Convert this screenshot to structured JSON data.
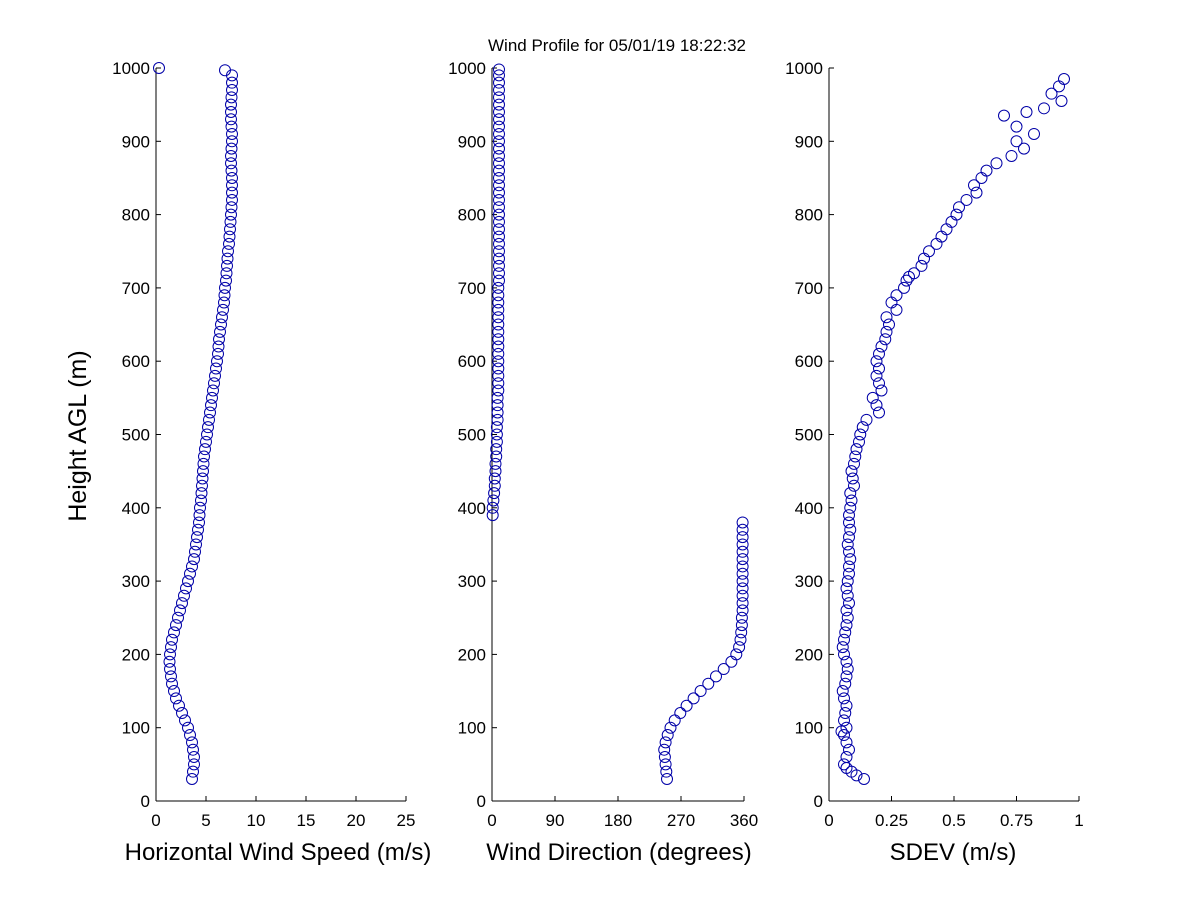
{
  "title": "Wind Profile for  05/01/19 18:22:32",
  "ylabel": "Height AGL (m)",
  "colors": {
    "marker": "#0000a8"
  },
  "chart_data": [
    {
      "type": "scatter",
      "name": "speed",
      "xlabel": "Horizontal Wind Speed (m/s)",
      "xlim": [
        0,
        25
      ],
      "ylim": [
        0,
        1000
      ],
      "xticks": [
        0,
        5,
        10,
        15,
        20,
        25
      ],
      "yticks": [
        0,
        100,
        200,
        300,
        400,
        500,
        600,
        700,
        800,
        900,
        1000
      ],
      "points": [
        {
          "x": 3.6,
          "y": 30
        },
        {
          "x": 3.7,
          "y": 40
        },
        {
          "x": 3.8,
          "y": 50
        },
        {
          "x": 3.8,
          "y": 60
        },
        {
          "x": 3.7,
          "y": 70
        },
        {
          "x": 3.6,
          "y": 80
        },
        {
          "x": 3.4,
          "y": 90
        },
        {
          "x": 3.2,
          "y": 100
        },
        {
          "x": 2.9,
          "y": 110
        },
        {
          "x": 2.6,
          "y": 120
        },
        {
          "x": 2.3,
          "y": 130
        },
        {
          "x": 2.0,
          "y": 140
        },
        {
          "x": 1.8,
          "y": 150
        },
        {
          "x": 1.6,
          "y": 160
        },
        {
          "x": 1.5,
          "y": 170
        },
        {
          "x": 1.4,
          "y": 180
        },
        {
          "x": 1.35,
          "y": 190
        },
        {
          "x": 1.4,
          "y": 200
        },
        {
          "x": 1.5,
          "y": 210
        },
        {
          "x": 1.6,
          "y": 220
        },
        {
          "x": 1.8,
          "y": 230
        },
        {
          "x": 2.0,
          "y": 240
        },
        {
          "x": 2.2,
          "y": 250
        },
        {
          "x": 2.4,
          "y": 260
        },
        {
          "x": 2.6,
          "y": 270
        },
        {
          "x": 2.8,
          "y": 280
        },
        {
          "x": 3.0,
          "y": 290
        },
        {
          "x": 3.2,
          "y": 300
        },
        {
          "x": 3.4,
          "y": 310
        },
        {
          "x": 3.6,
          "y": 320
        },
        {
          "x": 3.8,
          "y": 330
        },
        {
          "x": 3.9,
          "y": 340
        },
        {
          "x": 4.0,
          "y": 350
        },
        {
          "x": 4.1,
          "y": 360
        },
        {
          "x": 4.2,
          "y": 370
        },
        {
          "x": 4.3,
          "y": 380
        },
        {
          "x": 4.35,
          "y": 390
        },
        {
          "x": 4.4,
          "y": 400
        },
        {
          "x": 4.5,
          "y": 410
        },
        {
          "x": 4.55,
          "y": 420
        },
        {
          "x": 4.6,
          "y": 430
        },
        {
          "x": 4.65,
          "y": 440
        },
        {
          "x": 4.7,
          "y": 450
        },
        {
          "x": 4.75,
          "y": 460
        },
        {
          "x": 4.8,
          "y": 470
        },
        {
          "x": 4.9,
          "y": 480
        },
        {
          "x": 5.0,
          "y": 490
        },
        {
          "x": 5.1,
          "y": 500
        },
        {
          "x": 5.2,
          "y": 510
        },
        {
          "x": 5.3,
          "y": 520
        },
        {
          "x": 5.4,
          "y": 530
        },
        {
          "x": 5.5,
          "y": 540
        },
        {
          "x": 5.6,
          "y": 550
        },
        {
          "x": 5.7,
          "y": 560
        },
        {
          "x": 5.8,
          "y": 570
        },
        {
          "x": 5.9,
          "y": 580
        },
        {
          "x": 6.0,
          "y": 590
        },
        {
          "x": 6.1,
          "y": 600
        },
        {
          "x": 6.2,
          "y": 610
        },
        {
          "x": 6.25,
          "y": 620
        },
        {
          "x": 6.3,
          "y": 630
        },
        {
          "x": 6.4,
          "y": 640
        },
        {
          "x": 6.5,
          "y": 650
        },
        {
          "x": 6.6,
          "y": 660
        },
        {
          "x": 6.7,
          "y": 670
        },
        {
          "x": 6.8,
          "y": 680
        },
        {
          "x": 6.85,
          "y": 690
        },
        {
          "x": 6.9,
          "y": 700
        },
        {
          "x": 7.0,
          "y": 710
        },
        {
          "x": 7.05,
          "y": 720
        },
        {
          "x": 7.1,
          "y": 730
        },
        {
          "x": 7.15,
          "y": 740
        },
        {
          "x": 7.2,
          "y": 750
        },
        {
          "x": 7.3,
          "y": 760
        },
        {
          "x": 7.35,
          "y": 770
        },
        {
          "x": 7.4,
          "y": 780
        },
        {
          "x": 7.45,
          "y": 790
        },
        {
          "x": 7.5,
          "y": 800
        },
        {
          "x": 7.55,
          "y": 810
        },
        {
          "x": 7.6,
          "y": 820
        },
        {
          "x": 7.6,
          "y": 830
        },
        {
          "x": 7.6,
          "y": 840
        },
        {
          "x": 7.6,
          "y": 850
        },
        {
          "x": 7.55,
          "y": 860
        },
        {
          "x": 7.5,
          "y": 870
        },
        {
          "x": 7.5,
          "y": 880
        },
        {
          "x": 7.55,
          "y": 890
        },
        {
          "x": 7.6,
          "y": 900
        },
        {
          "x": 7.6,
          "y": 910
        },
        {
          "x": 7.55,
          "y": 920
        },
        {
          "x": 7.5,
          "y": 930
        },
        {
          "x": 7.5,
          "y": 940
        },
        {
          "x": 7.5,
          "y": 950
        },
        {
          "x": 7.55,
          "y": 960
        },
        {
          "x": 7.6,
          "y": 970
        },
        {
          "x": 7.6,
          "y": 980
        },
        {
          "x": 7.6,
          "y": 990
        },
        {
          "x": 6.9,
          "y": 997
        },
        {
          "x": 0.3,
          "y": 1000
        }
      ]
    },
    {
      "type": "scatter",
      "name": "direction",
      "xlabel": "Wind Direction (degrees)",
      "xlim": [
        0,
        360
      ],
      "ylim": [
        0,
        1000
      ],
      "xticks": [
        0,
        90,
        180,
        270,
        360
      ],
      "yticks": [
        0,
        100,
        200,
        300,
        400,
        500,
        600,
        700,
        800,
        900,
        1000
      ],
      "points": [
        {
          "x": 250,
          "y": 30
        },
        {
          "x": 249,
          "y": 40
        },
        {
          "x": 248,
          "y": 50
        },
        {
          "x": 247,
          "y": 60
        },
        {
          "x": 246,
          "y": 70
        },
        {
          "x": 248,
          "y": 80
        },
        {
          "x": 251,
          "y": 90
        },
        {
          "x": 255,
          "y": 100
        },
        {
          "x": 261,
          "y": 110
        },
        {
          "x": 269,
          "y": 120
        },
        {
          "x": 278,
          "y": 130
        },
        {
          "x": 288,
          "y": 140
        },
        {
          "x": 298,
          "y": 150
        },
        {
          "x": 309,
          "y": 160
        },
        {
          "x": 320,
          "y": 170
        },
        {
          "x": 331,
          "y": 180
        },
        {
          "x": 342,
          "y": 190
        },
        {
          "x": 349,
          "y": 200
        },
        {
          "x": 353,
          "y": 210
        },
        {
          "x": 355,
          "y": 220
        },
        {
          "x": 356,
          "y": 230
        },
        {
          "x": 357,
          "y": 240
        },
        {
          "x": 357,
          "y": 250
        },
        {
          "x": 358,
          "y": 260
        },
        {
          "x": 358,
          "y": 270
        },
        {
          "x": 358,
          "y": 280
        },
        {
          "x": 358,
          "y": 290
        },
        {
          "x": 358,
          "y": 300
        },
        {
          "x": 358,
          "y": 310
        },
        {
          "x": 358,
          "y": 320
        },
        {
          "x": 358,
          "y": 330
        },
        {
          "x": 358,
          "y": 340
        },
        {
          "x": 358,
          "y": 350
        },
        {
          "x": 358,
          "y": 360
        },
        {
          "x": 358,
          "y": 370
        },
        {
          "x": 358,
          "y": 380
        },
        {
          "x": 1,
          "y": 390
        },
        {
          "x": 1,
          "y": 400
        },
        {
          "x": 2,
          "y": 410
        },
        {
          "x": 3,
          "y": 420
        },
        {
          "x": 4,
          "y": 430
        },
        {
          "x": 4,
          "y": 440
        },
        {
          "x": 5,
          "y": 450
        },
        {
          "x": 5,
          "y": 460
        },
        {
          "x": 6,
          "y": 470
        },
        {
          "x": 6,
          "y": 480
        },
        {
          "x": 7,
          "y": 490
        },
        {
          "x": 7,
          "y": 500
        },
        {
          "x": 7,
          "y": 510
        },
        {
          "x": 8,
          "y": 520
        },
        {
          "x": 8,
          "y": 530
        },
        {
          "x": 8,
          "y": 540
        },
        {
          "x": 8,
          "y": 550
        },
        {
          "x": 9,
          "y": 560
        },
        {
          "x": 9,
          "y": 570
        },
        {
          "x": 9,
          "y": 580
        },
        {
          "x": 9,
          "y": 590
        },
        {
          "x": 9,
          "y": 600
        },
        {
          "x": 9,
          "y": 610
        },
        {
          "x": 9,
          "y": 620
        },
        {
          "x": 9,
          "y": 630
        },
        {
          "x": 9,
          "y": 640
        },
        {
          "x": 9,
          "y": 650
        },
        {
          "x": 9,
          "y": 660
        },
        {
          "x": 9,
          "y": 670
        },
        {
          "x": 9,
          "y": 680
        },
        {
          "x": 9,
          "y": 690
        },
        {
          "x": 9,
          "y": 700
        },
        {
          "x": 10,
          "y": 710
        },
        {
          "x": 10,
          "y": 720
        },
        {
          "x": 10,
          "y": 730
        },
        {
          "x": 10,
          "y": 740
        },
        {
          "x": 10,
          "y": 750
        },
        {
          "x": 10,
          "y": 760
        },
        {
          "x": 10,
          "y": 770
        },
        {
          "x": 10,
          "y": 780
        },
        {
          "x": 10,
          "y": 790
        },
        {
          "x": 10,
          "y": 800
        },
        {
          "x": 10,
          "y": 810
        },
        {
          "x": 10,
          "y": 820
        },
        {
          "x": 10,
          "y": 830
        },
        {
          "x": 10,
          "y": 840
        },
        {
          "x": 10,
          "y": 850
        },
        {
          "x": 10,
          "y": 860
        },
        {
          "x": 10,
          "y": 870
        },
        {
          "x": 10,
          "y": 880
        },
        {
          "x": 10,
          "y": 890
        },
        {
          "x": 10,
          "y": 900
        },
        {
          "x": 10,
          "y": 910
        },
        {
          "x": 10,
          "y": 920
        },
        {
          "x": 10,
          "y": 930
        },
        {
          "x": 10,
          "y": 940
        },
        {
          "x": 10,
          "y": 950
        },
        {
          "x": 10,
          "y": 960
        },
        {
          "x": 10,
          "y": 970
        },
        {
          "x": 10,
          "y": 980
        },
        {
          "x": 10,
          "y": 990
        },
        {
          "x": 10,
          "y": 998
        }
      ]
    },
    {
      "type": "scatter",
      "name": "sdev",
      "xlabel": "SDEV  (m/s)",
      "xlim": [
        0,
        1
      ],
      "ylim": [
        0,
        1000
      ],
      "xticks": [
        0,
        0.25,
        0.5,
        0.75,
        1
      ],
      "xticklabels": [
        "0",
        "0.25",
        "0.5",
        "0.75",
        "1"
      ],
      "yticks": [
        0,
        100,
        200,
        300,
        400,
        500,
        600,
        700,
        800,
        900,
        1000
      ],
      "points": [
        {
          "x": 0.14,
          "y": 30
        },
        {
          "x": 0.11,
          "y": 35
        },
        {
          "x": 0.09,
          "y": 40
        },
        {
          "x": 0.07,
          "y": 45
        },
        {
          "x": 0.06,
          "y": 50
        },
        {
          "x": 0.07,
          "y": 60
        },
        {
          "x": 0.08,
          "y": 70
        },
        {
          "x": 0.07,
          "y": 80
        },
        {
          "x": 0.06,
          "y": 90
        },
        {
          "x": 0.05,
          "y": 95
        },
        {
          "x": 0.07,
          "y": 100
        },
        {
          "x": 0.06,
          "y": 110
        },
        {
          "x": 0.065,
          "y": 120
        },
        {
          "x": 0.07,
          "y": 130
        },
        {
          "x": 0.06,
          "y": 140
        },
        {
          "x": 0.055,
          "y": 150
        },
        {
          "x": 0.065,
          "y": 160
        },
        {
          "x": 0.07,
          "y": 170
        },
        {
          "x": 0.075,
          "y": 180
        },
        {
          "x": 0.07,
          "y": 190
        },
        {
          "x": 0.06,
          "y": 200
        },
        {
          "x": 0.055,
          "y": 210
        },
        {
          "x": 0.06,
          "y": 220
        },
        {
          "x": 0.065,
          "y": 230
        },
        {
          "x": 0.07,
          "y": 240
        },
        {
          "x": 0.075,
          "y": 250
        },
        {
          "x": 0.07,
          "y": 260
        },
        {
          "x": 0.08,
          "y": 270
        },
        {
          "x": 0.075,
          "y": 280
        },
        {
          "x": 0.07,
          "y": 290
        },
        {
          "x": 0.075,
          "y": 300
        },
        {
          "x": 0.08,
          "y": 310
        },
        {
          "x": 0.08,
          "y": 320
        },
        {
          "x": 0.085,
          "y": 330
        },
        {
          "x": 0.08,
          "y": 340
        },
        {
          "x": 0.075,
          "y": 350
        },
        {
          "x": 0.08,
          "y": 360
        },
        {
          "x": 0.085,
          "y": 370
        },
        {
          "x": 0.08,
          "y": 380
        },
        {
          "x": 0.08,
          "y": 390
        },
        {
          "x": 0.085,
          "y": 400
        },
        {
          "x": 0.09,
          "y": 410
        },
        {
          "x": 0.085,
          "y": 420
        },
        {
          "x": 0.1,
          "y": 430
        },
        {
          "x": 0.095,
          "y": 440
        },
        {
          "x": 0.09,
          "y": 450
        },
        {
          "x": 0.1,
          "y": 460
        },
        {
          "x": 0.105,
          "y": 470
        },
        {
          "x": 0.11,
          "y": 480
        },
        {
          "x": 0.12,
          "y": 490
        },
        {
          "x": 0.125,
          "y": 500
        },
        {
          "x": 0.135,
          "y": 510
        },
        {
          "x": 0.15,
          "y": 520
        },
        {
          "x": 0.2,
          "y": 530
        },
        {
          "x": 0.19,
          "y": 540
        },
        {
          "x": 0.175,
          "y": 550
        },
        {
          "x": 0.21,
          "y": 560
        },
        {
          "x": 0.2,
          "y": 570
        },
        {
          "x": 0.19,
          "y": 580
        },
        {
          "x": 0.2,
          "y": 590
        },
        {
          "x": 0.19,
          "y": 600
        },
        {
          "x": 0.2,
          "y": 610
        },
        {
          "x": 0.21,
          "y": 620
        },
        {
          "x": 0.225,
          "y": 630
        },
        {
          "x": 0.23,
          "y": 640
        },
        {
          "x": 0.24,
          "y": 650
        },
        {
          "x": 0.23,
          "y": 660
        },
        {
          "x": 0.27,
          "y": 670
        },
        {
          "x": 0.25,
          "y": 680
        },
        {
          "x": 0.27,
          "y": 690
        },
        {
          "x": 0.3,
          "y": 700
        },
        {
          "x": 0.31,
          "y": 710
        },
        {
          "x": 0.32,
          "y": 715
        },
        {
          "x": 0.34,
          "y": 720
        },
        {
          "x": 0.37,
          "y": 730
        },
        {
          "x": 0.38,
          "y": 740
        },
        {
          "x": 0.4,
          "y": 750
        },
        {
          "x": 0.43,
          "y": 760
        },
        {
          "x": 0.45,
          "y": 770
        },
        {
          "x": 0.47,
          "y": 780
        },
        {
          "x": 0.49,
          "y": 790
        },
        {
          "x": 0.51,
          "y": 800
        },
        {
          "x": 0.52,
          "y": 810
        },
        {
          "x": 0.55,
          "y": 820
        },
        {
          "x": 0.59,
          "y": 830
        },
        {
          "x": 0.58,
          "y": 840
        },
        {
          "x": 0.61,
          "y": 850
        },
        {
          "x": 0.63,
          "y": 860
        },
        {
          "x": 0.67,
          "y": 870
        },
        {
          "x": 0.73,
          "y": 880
        },
        {
          "x": 0.78,
          "y": 890
        },
        {
          "x": 0.75,
          "y": 900
        },
        {
          "x": 0.82,
          "y": 910
        },
        {
          "x": 0.75,
          "y": 920
        },
        {
          "x": 0.7,
          "y": 935
        },
        {
          "x": 0.79,
          "y": 940
        },
        {
          "x": 0.86,
          "y": 945
        },
        {
          "x": 0.93,
          "y": 955
        },
        {
          "x": 0.89,
          "y": 965
        },
        {
          "x": 0.92,
          "y": 975
        },
        {
          "x": 0.94,
          "y": 985
        }
      ]
    }
  ]
}
